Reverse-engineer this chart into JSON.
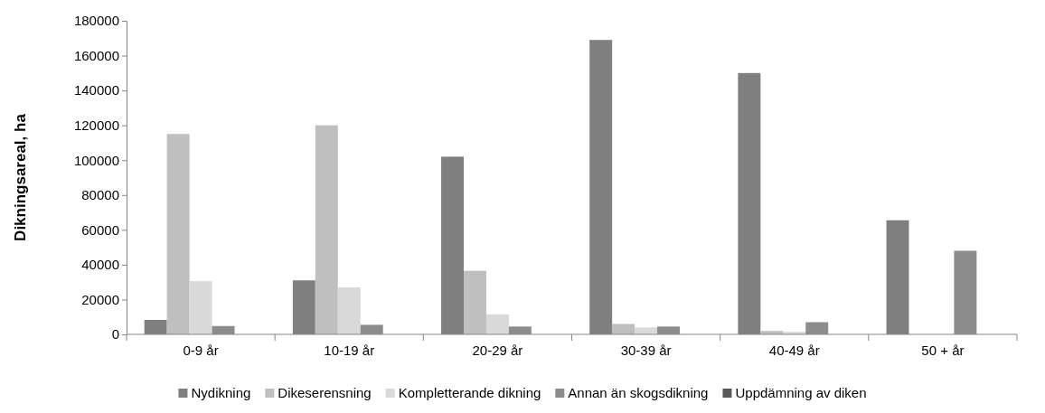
{
  "chart_data": {
    "type": "bar",
    "ylabel": "Dikningsareal, ha",
    "categories": [
      "0-9 år",
      "10-19 år",
      "20-29 år",
      "30-39 år",
      "40-49 år",
      "50 + år"
    ],
    "series": [
      {
        "name": "Nydikning",
        "color": "#7f7f7f",
        "values": [
          8300,
          31000,
          102000,
          169000,
          150000,
          65500
        ]
      },
      {
        "name": "Dikeserensning",
        "color": "#bfbfbf",
        "values": [
          115000,
          120000,
          36500,
          6000,
          2000,
          null
        ]
      },
      {
        "name": "Kompletterande dikning",
        "color": "#d9d9d9",
        "values": [
          30500,
          27000,
          11500,
          4000,
          1500,
          0
        ]
      },
      {
        "name": "Annan än skogsdikning",
        "color": "#8c8c8c",
        "values": [
          4800,
          5500,
          4500,
          4500,
          7000,
          48000
        ]
      },
      {
        "name": "Uppdämning av diken",
        "color": "#595959",
        "values": [
          null,
          null,
          0,
          0,
          0,
          0
        ]
      }
    ],
    "ylim": [
      0,
      180000
    ],
    "yticks": [
      0,
      20000,
      40000,
      60000,
      80000,
      100000,
      120000,
      140000,
      160000,
      180000
    ],
    "grid": false,
    "legend": "bottom"
  }
}
